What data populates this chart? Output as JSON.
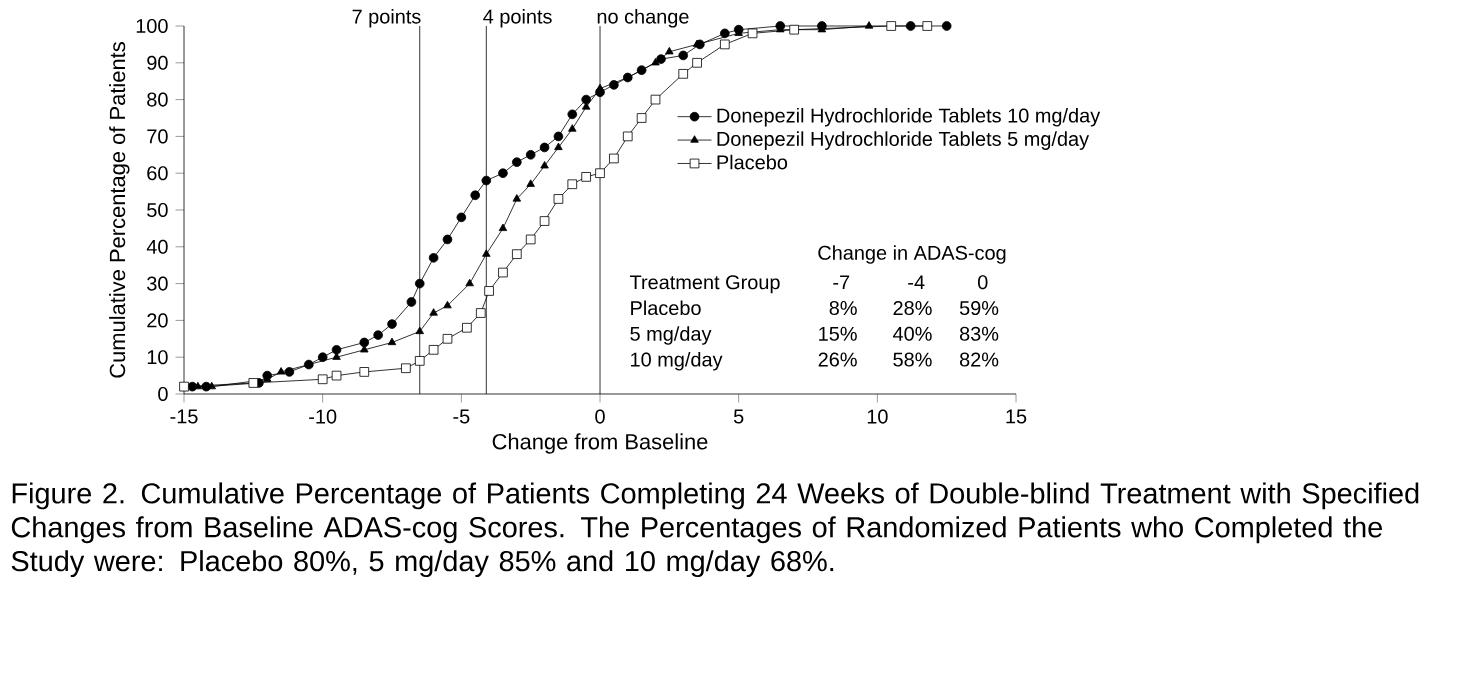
{
  "chart_data": {
    "type": "line",
    "xlabel": "Change from Baseline",
    "ylabel": "Cumulative Percentage of Patients",
    "xlim": [
      -15,
      15
    ],
    "xticks": [
      -15,
      -10,
      -5,
      0,
      5,
      10,
      15
    ],
    "ylim": [
      0,
      100
    ],
    "yticks": [
      0,
      10,
      20,
      30,
      40,
      50,
      60,
      70,
      80,
      90,
      100
    ],
    "legend": "right",
    "grid": false,
    "series": [
      {
        "name": "Donepezil Hydrochloride Tablets 10 mg/day",
        "color": "#000000",
        "marker": "circle",
        "x": [
          -14.7,
          -14.2,
          -12.3,
          -12,
          -11.2,
          -10.5,
          -10,
          -9.5,
          -8.5,
          -8,
          -7.5,
          -6.8,
          -6.5,
          -6,
          -5.5,
          -5,
          -4.5,
          -4.1,
          -3.5,
          -3,
          -2.5,
          -2,
          -1.5,
          -1,
          -0.5,
          0,
          0.5,
          1,
          1.5,
          2.2,
          3,
          3.6,
          4.5,
          5,
          6.5,
          8,
          11.2,
          12.5
        ],
        "values": [
          2,
          2,
          3,
          5,
          6,
          8,
          10,
          12,
          14,
          16,
          19,
          25,
          30,
          37,
          42,
          48,
          54,
          58,
          60,
          63,
          65,
          67,
          70,
          76,
          80,
          82,
          84,
          86,
          88,
          91,
          92,
          95,
          98,
          99,
          100,
          100,
          100,
          100
        ]
      },
      {
        "name": "Donepezil Hydrochloride Tablets 5 mg/day",
        "color": "#000000",
        "marker": "triangle",
        "x": [
          -14.5,
          -14,
          -12,
          -11.5,
          -10.5,
          -9.5,
          -8.5,
          -7.5,
          -6.5,
          -6,
          -5.5,
          -4.7,
          -4.1,
          -3.5,
          -3,
          -2.5,
          -2,
          -1.5,
          -1,
          -0.5,
          0,
          1,
          2,
          2.5,
          3.5,
          5,
          6.5,
          8,
          9.7
        ],
        "values": [
          2,
          2,
          4,
          6,
          8,
          10,
          12,
          14,
          17,
          22,
          24,
          30,
          38,
          45,
          53,
          57,
          62,
          67,
          72,
          78,
          83,
          86,
          90,
          93,
          95,
          98,
          99,
          99,
          100
        ]
      },
      {
        "name": "Placebo",
        "color": "#000000",
        "marker": "square",
        "x": [
          -15,
          -12.5,
          -10,
          -9.5,
          -8.5,
          -7,
          -6.5,
          -6,
          -5.5,
          -4.8,
          -4.3,
          -4,
          -3.5,
          -3,
          -2.5,
          -2,
          -1.5,
          -1,
          -0.5,
          0,
          0.5,
          1,
          1.5,
          2,
          3,
          3.5,
          4.5,
          5.5,
          7,
          10.5,
          11.8
        ],
        "values": [
          2,
          3,
          4,
          5,
          6,
          7,
          9,
          12,
          15,
          18,
          22,
          28,
          33,
          38,
          42,
          47,
          53,
          57,
          59,
          60,
          64,
          70,
          75,
          80,
          87,
          90,
          95,
          98,
          99,
          100,
          100
        ]
      }
    ],
    "ref_lines": [
      {
        "axis": "x",
        "value": -6.5,
        "label": "7 points",
        "color": "#000000"
      },
      {
        "axis": "x",
        "value": -4.1,
        "label": "4 points",
        "color": "#000000"
      },
      {
        "axis": "x",
        "value": 0,
        "label": "no change",
        "color": "#000000"
      }
    ],
    "annotations": [
      "Figure 2. Cumulative Percentage of Patients Completing 24 Weeks of Double-blind Treatment with Specified Changes from Baseline ADAS-cog Scores. The Percentages of Randomized Patients who Completed the Study were: Placebo 80%, 5 mg/day 85% and 10 mg/day 68%.",
      "Change in ADAS-cog",
      "Treatment Group",
      "-7",
      "-4",
      "0",
      "Placebo",
      "8%",
      "28%",
      "59%",
      "5 mg/day",
      "15%",
      "40%",
      "83%",
      "10 mg/day",
      "26%",
      "58%",
      "82%"
    ]
  }
}
